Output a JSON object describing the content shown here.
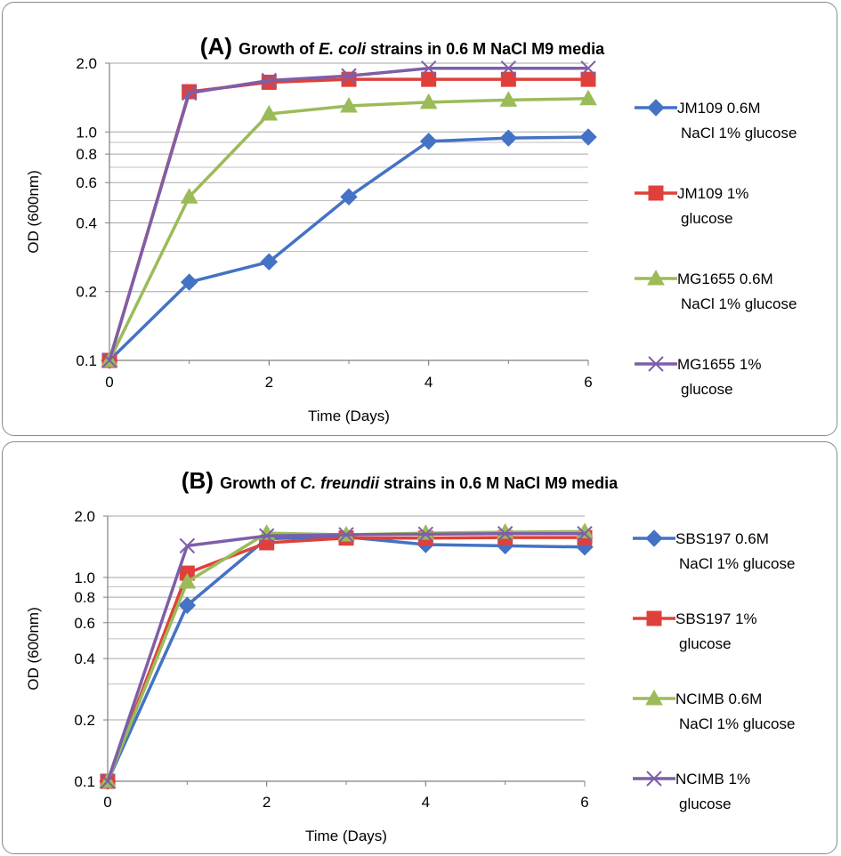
{
  "chart_data": [
    {
      "type": "line",
      "panel_letter": "(A)",
      "title_parts": [
        {
          "text": "Growth of ",
          "italic": false
        },
        {
          "text": "E. coli",
          "italic": true
        },
        {
          "text": " strains in 0.6 M NaCl M9 media",
          "italic": false
        }
      ],
      "xlabel": "Time (Days)",
      "ylabel": "OD (600nm)",
      "yscale": "log",
      "xlim": [
        0,
        6
      ],
      "ylim": [
        0.1,
        2.0
      ],
      "x_ticks": [
        "0",
        "2",
        "4",
        "6"
      ],
      "y_ticks": [
        "2.0",
        "1.0",
        "0.8",
        "0.6",
        "0.4",
        "0.2",
        "0.1"
      ],
      "grid": true,
      "legend_position": "right",
      "x": [
        0,
        1,
        2,
        3,
        4,
        5,
        6
      ],
      "series": [
        {
          "name_lines": [
            "JM109 0.6M",
            "NaCl 1% glucose"
          ],
          "color": "#4472c4",
          "marker": "diamond",
          "values": [
            0.1,
            0.22,
            0.27,
            0.52,
            0.91,
            0.94,
            0.95
          ]
        },
        {
          "name_lines": [
            "JM109 1%",
            "glucose"
          ],
          "color": "#e0403a",
          "marker": "square",
          "values": [
            0.1,
            1.5,
            1.65,
            1.7,
            1.7,
            1.7,
            1.7
          ]
        },
        {
          "name_lines": [
            "MG1655 0.6M",
            "NaCl 1% glucose"
          ],
          "color": "#9bbb59",
          "marker": "triangle",
          "values": [
            0.1,
            0.52,
            1.2,
            1.3,
            1.35,
            1.38,
            1.4
          ]
        },
        {
          "name_lines": [
            "MG1655 1%",
            "glucose"
          ],
          "color": "#7e5ea8",
          "marker": "x",
          "values": [
            0.1,
            1.48,
            1.68,
            1.76,
            1.9,
            1.9,
            1.9
          ]
        }
      ]
    },
    {
      "type": "line",
      "panel_letter": "(B)",
      "title_parts": [
        {
          "text": "Growth of ",
          "italic": false
        },
        {
          "text": "C. freundii",
          "italic": true
        },
        {
          "text": " strains in 0.6 M NaCl M9 media",
          "italic": false
        }
      ],
      "xlabel": "Time (Days)",
      "ylabel": "OD (600nm)",
      "yscale": "log",
      "xlim": [
        0,
        6
      ],
      "ylim": [
        0.1,
        2.0
      ],
      "x_ticks": [
        "0",
        "2",
        "4",
        "6"
      ],
      "y_ticks": [
        "2.0",
        "1.0",
        "0.8",
        "0.6",
        "0.4",
        "0.2",
        "0.1"
      ],
      "grid": true,
      "legend_position": "right",
      "x": [
        0,
        1,
        2,
        3,
        4,
        5,
        6
      ],
      "series": [
        {
          "name_lines": [
            "SBS197 0.6M",
            "NaCl 1% glucose"
          ],
          "color": "#4472c4",
          "marker": "diamond",
          "values": [
            0.1,
            0.73,
            1.55,
            1.58,
            1.45,
            1.43,
            1.41
          ]
        },
        {
          "name_lines": [
            "SBS197 1%",
            "glucose"
          ],
          "color": "#e0403a",
          "marker": "square",
          "values": [
            0.1,
            1.05,
            1.48,
            1.56,
            1.56,
            1.57,
            1.57
          ]
        },
        {
          "name_lines": [
            "NCIMB 0.6M",
            "NaCl 1% glucose"
          ],
          "color": "#9bbb59",
          "marker": "triangle",
          "values": [
            0.1,
            0.95,
            1.65,
            1.62,
            1.65,
            1.67,
            1.68
          ]
        },
        {
          "name_lines": [
            "NCIMB 1%",
            "glucose"
          ],
          "color": "#7e5ea8",
          "marker": "x",
          "values": [
            0.1,
            1.43,
            1.6,
            1.62,
            1.63,
            1.64,
            1.64
          ]
        }
      ]
    }
  ]
}
